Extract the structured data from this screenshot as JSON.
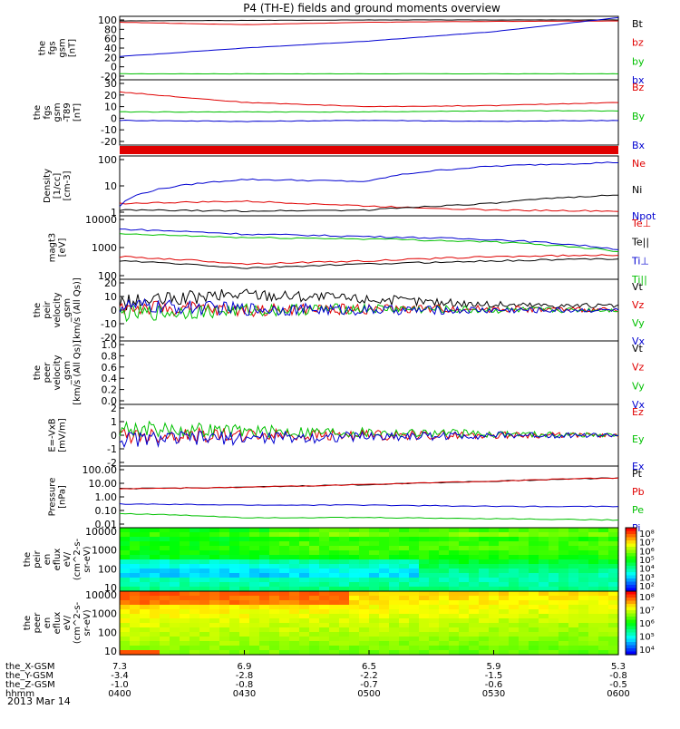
{
  "title": "P4 (TH-E) fields and ground moments overview",
  "date_label": "2013 Mar 14",
  "colors": {
    "black": "#000000",
    "red": "#e00000",
    "green": "#00c000",
    "blue": "#0000d0",
    "cyan": "#00a0e0"
  },
  "chart_data": [
    {
      "type": "line",
      "ylabel": [
        "the",
        "fgs",
        "gsm",
        "[nT]"
      ],
      "yticks": [
        "100",
        "80",
        "60",
        "40",
        "20",
        "0",
        "-20"
      ],
      "ylim": [
        -20,
        100
      ],
      "series": [
        {
          "name": "Bt",
          "color": "black",
          "values": [
            98,
            99,
            100,
            100,
            100
          ]
        },
        {
          "name": "bz",
          "color": "red",
          "values": [
            95,
            90,
            95,
            97,
            98
          ]
        },
        {
          "name": "by",
          "color": "green",
          "values": [
            -15,
            -15,
            -15,
            -15,
            -15
          ]
        },
        {
          "name": "bx",
          "color": "blue",
          "values": [
            22,
            40,
            55,
            75,
            105
          ]
        }
      ]
    },
    {
      "type": "line",
      "ylabel": [
        "the",
        "fgs",
        "gsm",
        "-T89",
        "[nT]"
      ],
      "yticks": [
        "30",
        "20",
        "10",
        "0",
        "-10",
        "-20"
      ],
      "ylim": [
        -25,
        30
      ],
      "series": [
        {
          "name": "Bz",
          "color": "red",
          "values": [
            22,
            12,
            8,
            9,
            12
          ]
        },
        {
          "name": "By",
          "color": "green",
          "values": [
            3,
            3,
            3,
            4,
            4
          ]
        },
        {
          "name": "Bx",
          "color": "blue",
          "values": [
            -5,
            -6,
            -5,
            -6,
            -5
          ]
        }
      ]
    },
    {
      "type": "line",
      "ylabel": [
        "Density",
        "[1/cc]",
        "[cm-3]"
      ],
      "yticks": [
        "100",
        "10",
        "1"
      ],
      "ylim": [
        0.8,
        200
      ],
      "log": true,
      "series": [
        {
          "name": "Ne",
          "color": "red",
          "values": [
            2,
            2.5,
            1.5,
            1,
            0.9
          ]
        },
        {
          "name": "Ni",
          "color": "black",
          "values": [
            1,
            0.9,
            1,
            2,
            5
          ]
        },
        {
          "name": "Npot",
          "color": "blue",
          "values": [
            1.5,
            25,
            20,
            100,
            150
          ]
        }
      ]
    },
    {
      "type": "line",
      "ylabel": [
        "magt3",
        "[eV]"
      ],
      "yticks": [
        "10000",
        "1000",
        "100"
      ],
      "ylim": [
        50,
        10000
      ],
      "log": true,
      "series": [
        {
          "name": "Te⊥",
          "color": "red",
          "values": [
            300,
            150,
            200,
            300,
            350
          ]
        },
        {
          "name": "Te||",
          "color": "black",
          "values": [
            200,
            100,
            150,
            200,
            250
          ]
        },
        {
          "name": "Ti⊥",
          "color": "blue",
          "values": [
            4000,
            2500,
            2000,
            1500,
            600
          ]
        },
        {
          "name": "Ti||",
          "color": "green",
          "values": [
            2500,
            1800,
            1600,
            1200,
            500
          ]
        }
      ]
    },
    {
      "type": "line",
      "ylabel": [
        "the",
        "peir",
        "velocity",
        "_gsm",
        "[km/s (All Qs)]"
      ],
      "yticks": [
        "20",
        "10",
        "0",
        "-10",
        "-20"
      ],
      "ylim": [
        -20,
        20
      ],
      "series": [
        {
          "name": "Vt",
          "color": "black",
          "values": [
            5,
            12,
            8,
            4,
            3
          ]
        },
        {
          "name": "Vz",
          "color": "red",
          "values": [
            2,
            0,
            1,
            1,
            0
          ]
        },
        {
          "name": "Vy",
          "color": "green",
          "values": [
            -3,
            0,
            1,
            0,
            0
          ]
        },
        {
          "name": "Vx",
          "color": "blue",
          "values": [
            3,
            1,
            0,
            0,
            0
          ]
        }
      ]
    },
    {
      "type": "line",
      "ylabel": [
        "the",
        "peer",
        "velocity",
        "_gsm",
        "[km/s (All Qs)]"
      ],
      "yticks": [
        "1.0",
        "0.8",
        "0.6",
        "0.4",
        "0.2",
        "0.0"
      ],
      "ylim": [
        0,
        1
      ],
      "series": [
        {
          "name": "Vt",
          "color": "black",
          "values": []
        },
        {
          "name": "Vz",
          "color": "red",
          "values": []
        },
        {
          "name": "Vy",
          "color": "green",
          "values": []
        },
        {
          "name": "Vx",
          "color": "blue",
          "values": []
        }
      ]
    },
    {
      "type": "line",
      "ylabel": [
        "E=-VxB",
        "[mV/m]"
      ],
      "yticks": [
        "2",
        "1",
        "0",
        "-1",
        "-2"
      ],
      "ylim": [
        -2,
        2
      ],
      "series": [
        {
          "name": "Ez",
          "color": "red",
          "values": [
            0,
            0,
            0,
            0,
            0
          ]
        },
        {
          "name": "Ey",
          "color": "green",
          "values": [
            0.5,
            0.3,
            0.2,
            0.1,
            0
          ]
        },
        {
          "name": "Ex",
          "color": "blue",
          "values": [
            -0.3,
            -0.2,
            -0.1,
            0,
            0
          ]
        }
      ]
    },
    {
      "type": "line",
      "ylabel": [
        "Pressure",
        "[nPa]"
      ],
      "yticks": [
        "100.00",
        "10.00",
        "1.00",
        "0.10",
        "0.01"
      ],
      "ylim": [
        0.01,
        100
      ],
      "log": true,
      "series": [
        {
          "name": "Pt",
          "color": "black",
          "values": [
            4,
            5,
            8,
            14,
            25
          ]
        },
        {
          "name": "Pb",
          "color": "red",
          "values": [
            4,
            5,
            8,
            14,
            25
          ]
        },
        {
          "name": "Pe",
          "color": "green",
          "values": [
            0.06,
            0.03,
            0.03,
            0.025,
            0.02
          ]
        },
        {
          "name": "Pi",
          "color": "blue",
          "values": [
            0.3,
            0.25,
            0.25,
            0.2,
            0.2
          ]
        }
      ]
    },
    {
      "type": "heatmap",
      "ylabel": [
        "the",
        "peir",
        "en",
        "eflux",
        "eV/",
        "(cm^2-s-",
        "sr-eV)"
      ],
      "yticks": [
        "10000",
        "1000",
        "100",
        "10"
      ],
      "colorbar_ticks": [
        "10⁸",
        "10⁷",
        "10⁶",
        "10⁵",
        "10⁴",
        "10³",
        "10²"
      ]
    },
    {
      "type": "heatmap",
      "ylabel": [
        "the",
        "peer",
        "en",
        "eflux",
        "eV/",
        "(cm^2-s-",
        "sr-eV)"
      ],
      "yticks": [
        "10000",
        "1000",
        "100",
        "10"
      ],
      "colorbar_ticks": [
        "10⁸",
        "10⁷",
        "10⁶",
        "10⁵",
        "10⁴"
      ]
    }
  ],
  "xaxis": {
    "rows": [
      {
        "label": "the_X-GSM",
        "values": [
          "7.3",
          "6.9",
          "6.5",
          "5.9",
          "5.3"
        ]
      },
      {
        "label": "the_Y-GSM",
        "values": [
          "-3.4",
          "-2.8",
          "-2.2",
          "-1.5",
          "-0.8"
        ]
      },
      {
        "label": "the_Z-GSM",
        "values": [
          "-1.0",
          "-0.8",
          "-0.7",
          "-0.6",
          "-0.5"
        ]
      },
      {
        "label": "hhmm",
        "values": [
          "0400",
          "0430",
          "0500",
          "0530",
          "0600"
        ]
      }
    ]
  }
}
